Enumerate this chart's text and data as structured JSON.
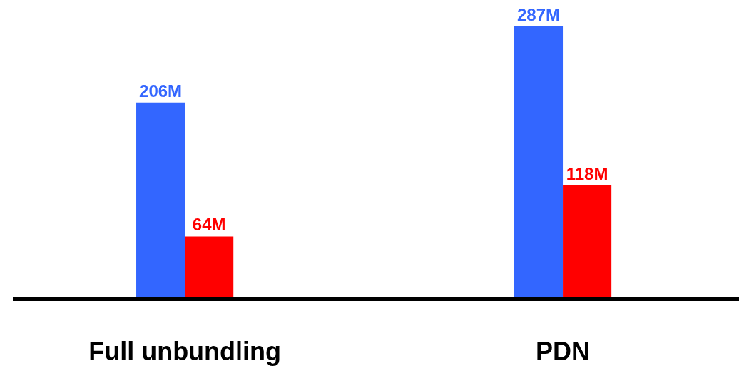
{
  "chart_data": {
    "type": "bar",
    "categories": [
      "Full unbundling",
      "PDN"
    ],
    "series": [
      {
        "color": "#3366ff",
        "values": [
          206,
          287
        ],
        "value_labels": [
          "206M",
          "287M"
        ]
      },
      {
        "color": "#ff0000",
        "values": [
          64,
          118
        ],
        "value_labels": [
          "64M",
          "118M"
        ]
      }
    ],
    "legend": false,
    "tick_labels": "x"
  }
}
